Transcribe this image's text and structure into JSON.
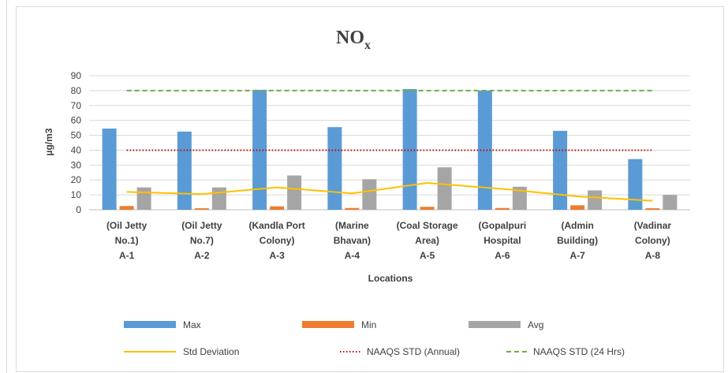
{
  "chart_data": {
    "type": "bar",
    "title": "NO",
    "title_subscript": "x",
    "xlabel": "Locations",
    "ylabel": "µg/m3",
    "ylim": [
      0,
      90
    ],
    "yticks": [
      0,
      10,
      20,
      30,
      40,
      50,
      60,
      70,
      80,
      90
    ],
    "grid": true,
    "legend_position": "bottom",
    "categories": [
      [
        "(Oil Jetty",
        "No.1)",
        "A-1"
      ],
      [
        "(Oil Jetty",
        "No.7)",
        "A-2"
      ],
      [
        "(Kandla Port",
        "Colony)",
        "A-3"
      ],
      [
        "(Marine",
        "Bhavan)",
        "A-4"
      ],
      [
        "(Coal Storage",
        "Area)",
        "A-5"
      ],
      [
        "(Gopalpuri",
        "Hospital",
        "A-6"
      ],
      [
        "(Admin",
        "Building)",
        "A-7"
      ],
      [
        "(Vadinar",
        "Colony)",
        "A-8"
      ]
    ],
    "series": [
      {
        "name": "Max",
        "kind": "bar",
        "color": "#5b9bd5",
        "values": [
          54.5,
          52.5,
          80.5,
          55.5,
          81,
          80,
          53,
          34
        ]
      },
      {
        "name": "Min",
        "kind": "bar",
        "color": "#ed7d31",
        "values": [
          2.5,
          1,
          2.3,
          1.2,
          2,
          1.2,
          3,
          1
        ]
      },
      {
        "name": "Avg",
        "kind": "bar",
        "color": "#a5a5a5",
        "values": [
          15,
          15,
          23,
          20.5,
          28.5,
          15.5,
          13,
          10
        ]
      },
      {
        "name": "Std Deviation",
        "kind": "line",
        "style": "solid",
        "color": "#ffc000",
        "values": [
          12,
          10.5,
          15,
          11,
          18,
          14,
          9,
          6
        ]
      },
      {
        "name": "NAAQS STD (Annual)",
        "kind": "line",
        "style": "dotted",
        "color": "#c00000",
        "values": [
          40,
          40,
          40,
          40,
          40,
          40,
          40,
          40
        ]
      },
      {
        "name": "NAAQS STD (24 Hrs)",
        "kind": "line",
        "style": "dashed",
        "color": "#70ad47",
        "values": [
          80,
          80,
          80,
          80,
          80,
          80,
          80,
          80
        ]
      }
    ]
  }
}
